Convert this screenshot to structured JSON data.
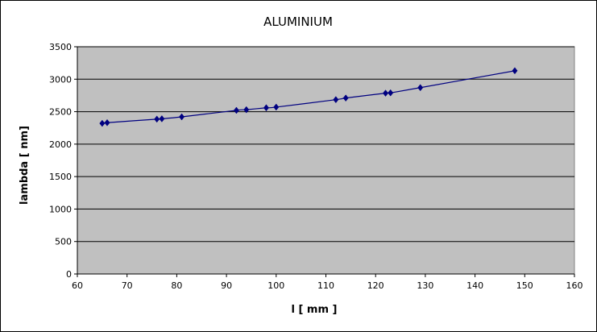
{
  "chart_data": {
    "type": "scatter",
    "title": "ALUMINIUM",
    "xlabel": "l [ mm ]",
    "ylabel": "lambda [ nm]",
    "xlim": [
      60,
      160
    ],
    "ylim": [
      0,
      3500
    ],
    "x_ticks": [
      "60",
      "70",
      "80",
      "90",
      "100",
      "110",
      "120",
      "130",
      "140",
      "150",
      "160"
    ],
    "y_ticks": [
      "0",
      "500",
      "1000",
      "1500",
      "2000",
      "2500",
      "3000",
      "3500"
    ],
    "grid": "horizontal",
    "legend": "none",
    "smoothed_line": true,
    "plot_background": "#c0c0c0",
    "series": [
      {
        "color": "#000080",
        "marker": "diamond",
        "points": [
          {
            "x": 65,
            "y": 2320
          },
          {
            "x": 66,
            "y": 2330
          },
          {
            "x": 76,
            "y": 2385
          },
          {
            "x": 77,
            "y": 2390
          },
          {
            "x": 81,
            "y": 2420
          },
          {
            "x": 92,
            "y": 2520
          },
          {
            "x": 94,
            "y": 2530
          },
          {
            "x": 98,
            "y": 2560
          },
          {
            "x": 100,
            "y": 2570
          },
          {
            "x": 112,
            "y": 2685
          },
          {
            "x": 114,
            "y": 2710
          },
          {
            "x": 122,
            "y": 2785
          },
          {
            "x": 123,
            "y": 2790
          },
          {
            "x": 129,
            "y": 2870
          },
          {
            "x": 148,
            "y": 3130
          }
        ]
      }
    ]
  }
}
